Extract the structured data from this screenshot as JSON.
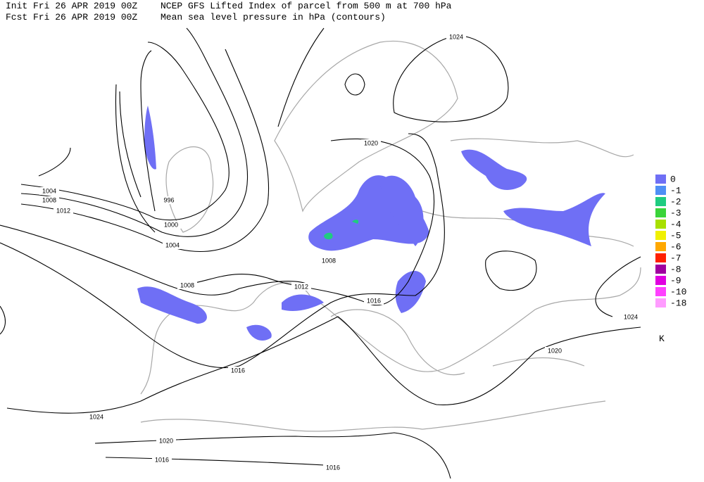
{
  "header": {
    "init": "Init  Fri 26 APR 2019 00Z",
    "fcst": "Fcst Fri 26 APR 2019 00Z",
    "title": "NCEP GFS Lifted Index of parcel from 500 m at 700 hPa",
    "subtitle": "Mean sea level pressure in hPa (contours)"
  },
  "contour_labels": [
    "1024",
    "1020",
    "1004",
    "1008",
    "1012",
    "996",
    "1000",
    "1004",
    "1008",
    "1008",
    "1012",
    "1016",
    "1024",
    "1020",
    "1016",
    "1024",
    "1020",
    "1016",
    "1016"
  ],
  "legend": {
    "entries": [
      {
        "label": "0",
        "color": "#6f6ff5"
      },
      {
        "label": "-1",
        "color": "#4f8ff5"
      },
      {
        "label": "-2",
        "color": "#1fcc80"
      },
      {
        "label": "-3",
        "color": "#3ad43a"
      },
      {
        "label": "-4",
        "color": "#a8e000"
      },
      {
        "label": "-5",
        "color": "#f0f000"
      },
      {
        "label": "-6",
        "color": "#ffa800"
      },
      {
        "label": "-7",
        "color": "#ff2000"
      },
      {
        "label": "-8",
        "color": "#a000a0"
      },
      {
        "label": "-9",
        "color": "#e000e0"
      },
      {
        "label": "-10",
        "color": "#ff40ff"
      },
      {
        "label": "-18",
        "color": "#ff9cff"
      }
    ],
    "unit": "K"
  }
}
